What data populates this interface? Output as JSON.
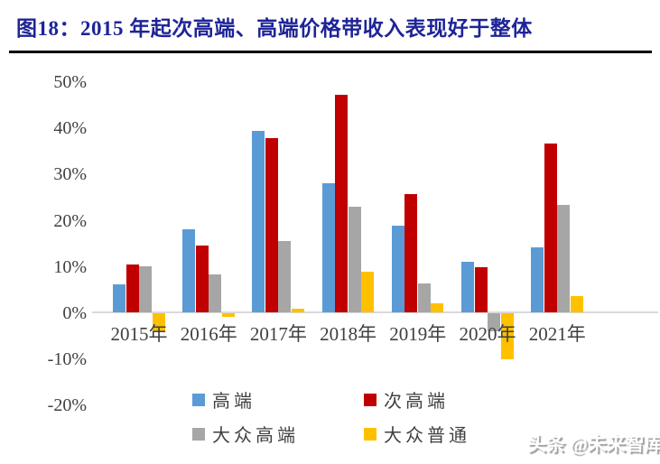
{
  "page": {
    "title": "图18：2015 年起次高端、高端价格带收入表现好于整体",
    "watermark": "头条 @未来智库",
    "colors": {
      "title_text": "#1E2496",
      "title_rule": "#000000",
      "axis_text": "#404040",
      "axis_line": "#D9D9D9",
      "background": "#FFFFFF"
    }
  },
  "chart_data": {
    "type": "bar",
    "title": "2015 年起次高端、高端价格带收入表现好于整体",
    "categories": [
      "2015年",
      "2016年",
      "2017年",
      "2018年",
      "2019年",
      "2020年",
      "2021年"
    ],
    "series": [
      {
        "name": "高端",
        "color": "#5B9BD5",
        "values": [
          6.0,
          17.9,
          39.2,
          28.0,
          18.7,
          11.0,
          14.0
        ]
      },
      {
        "name": "次高端",
        "color": "#C00000",
        "values": [
          10.3,
          14.4,
          37.7,
          47.0,
          25.5,
          9.8,
          36.6
        ]
      },
      {
        "name": "大众高端",
        "color": "#A6A6A6",
        "values": [
          10.0,
          8.2,
          15.5,
          22.9,
          6.2,
          -3.9,
          23.2
        ]
      },
      {
        "name": "大众普通",
        "color": "#FFC000",
        "values": [
          -4.0,
          -0.7,
          0.8,
          8.8,
          2.0,
          -9.9,
          3.6
        ]
      }
    ],
    "y_ticks": [
      "50%",
      "40%",
      "30%",
      "20%",
      "10%",
      "0%",
      "-10%",
      "-20%"
    ],
    "ylim": [
      -20,
      50
    ],
    "ylabel": "",
    "xlabel": "",
    "grid": false,
    "legend_position": "bottom"
  }
}
